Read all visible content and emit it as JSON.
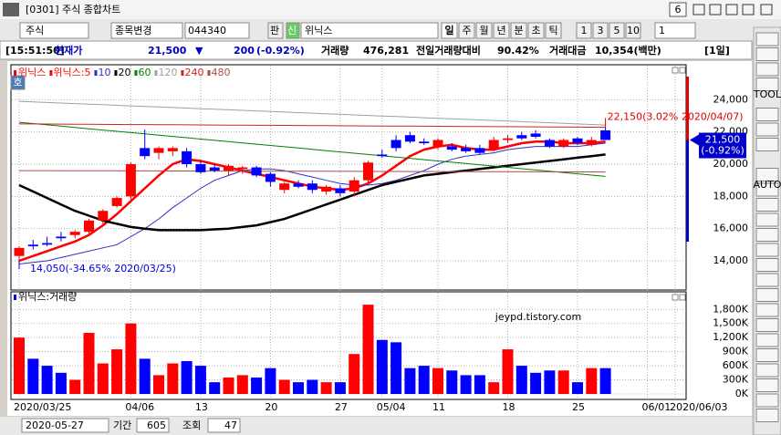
{
  "window": {
    "title": "[0301] 주식 종합차트",
    "page_badge": "6"
  },
  "toolbar": {
    "market": "주식",
    "change_button": "종목변경",
    "code": "044340",
    "pan": "판",
    "sin": "신",
    "name": "위닉스",
    "periods": [
      "일",
      "주",
      "월",
      "년",
      "분",
      "초",
      "틱"
    ],
    "intervals": [
      "1",
      "3",
      "5",
      "10"
    ],
    "interval_value": "1"
  },
  "info": {
    "time": "[15:51:50]",
    "price_label": "현재가",
    "price": "21,500",
    "arrow": "▼",
    "change": "200",
    "change_pct": "(-0.92%)",
    "volume_label": "거래량",
    "volume": "476,281",
    "ratio_label": "전일거래량대비",
    "ratio": "90.42%",
    "amount_label": "거래대금",
    "amount": "10,354(백만)",
    "period": "[1일]"
  },
  "side_tools": [
    "TOOL",
    "AUTO"
  ],
  "bottom": {
    "date": "2020-05-27",
    "period_label": "기간",
    "period_value": "605",
    "query_label": "조회",
    "query_value": "47"
  },
  "watermark": "jeypd.tistory.com",
  "chart_data": [
    {
      "type": "candlestick",
      "name": "위닉스",
      "legend_badge": "호",
      "categories": [
        "2020/03/25",
        null,
        null,
        null,
        null,
        null,
        null,
        null,
        "04/06",
        null,
        null,
        null,
        null,
        "13",
        null,
        null,
        null,
        null,
        "20",
        null,
        null,
        null,
        null,
        "27",
        null,
        null,
        "05/04",
        null,
        null,
        null,
        "11",
        null,
        null,
        null,
        null,
        "18",
        null,
        null,
        null,
        null,
        "25",
        null,
        null,
        null,
        null,
        "06/01",
        null,
        "2020/06/03"
      ],
      "open": [
        14300,
        15000,
        15100,
        15500,
        15600,
        15800,
        16500,
        17400,
        18000,
        21000,
        20700,
        20800,
        20800,
        20000,
        19800,
        19600,
        19700,
        19800,
        19400,
        18400,
        18800,
        18800,
        18300,
        18500,
        18300,
        19000,
        20600,
        21500,
        21800,
        21400,
        21100,
        21100,
        21000,
        21000,
        20900,
        21500,
        21800,
        21900,
        21500,
        21100,
        21600,
        21200,
        22100,
        null,
        null,
        null,
        null,
        null
      ],
      "high": [
        14900,
        15300,
        15500,
        15800,
        15900,
        16600,
        17200,
        18000,
        20100,
        22150,
        21100,
        21100,
        21000,
        20200,
        20000,
        20000,
        19900,
        19900,
        19500,
        18900,
        19000,
        19000,
        18700,
        18700,
        19200,
        20200,
        20900,
        21800,
        22000,
        21600,
        21600,
        21300,
        21200,
        21200,
        21700,
        21800,
        22000,
        22100,
        21600,
        21600,
        21700,
        21700,
        22300,
        null,
        null,
        null,
        null,
        null
      ],
      "low": [
        14050,
        14700,
        14900,
        15200,
        15400,
        15700,
        16300,
        17300,
        17800,
        20300,
        20300,
        20500,
        19800,
        19400,
        19500,
        19300,
        19400,
        19200,
        18600,
        18200,
        18500,
        18200,
        18100,
        18000,
        18000,
        18800,
        20400,
        20800,
        21300,
        21200,
        20900,
        20800,
        20700,
        20600,
        20800,
        21300,
        21500,
        21600,
        21000,
        21000,
        21200,
        21100,
        21500,
        null,
        null,
        null,
        null,
        null
      ],
      "close": [
        14800,
        14900,
        15000,
        15400,
        15800,
        16500,
        17100,
        17900,
        20000,
        20500,
        21000,
        21000,
        20000,
        19500,
        19600,
        19900,
        19800,
        19300,
        18900,
        18800,
        18600,
        18400,
        18600,
        18200,
        19000,
        20100,
        20500,
        21000,
        21400,
        21300,
        21500,
        20900,
        20800,
        20700,
        21500,
        21600,
        21600,
        21700,
        21100,
        21500,
        21300,
        21500,
        21500,
        null,
        null,
        null,
        null,
        null
      ],
      "up_color": "#ff0000",
      "down_color": "#0000ff",
      "series": [
        {
          "name": "위닉스:5",
          "color": "#ff0000",
          "values": [
            14000,
            14300,
            14600,
            14900,
            15200,
            15600,
            16200,
            16900,
            17700,
            18500,
            19300,
            20000,
            20300,
            20200,
            20000,
            19800,
            19600,
            19400,
            19200,
            19000,
            18800,
            18600,
            18500,
            18400,
            18500,
            18800,
            19300,
            19900,
            20500,
            20900,
            21100,
            21200,
            21000,
            20900,
            20900,
            21100,
            21300,
            21400,
            21400,
            21300,
            21300,
            21300,
            21400,
            null,
            null,
            null,
            null,
            null
          ]
        },
        {
          "name": "10",
          "color": "#3030c8",
          "values": [
            13800,
            13900,
            14000,
            14200,
            14400,
            14600,
            14800,
            15000,
            15500,
            16000,
            16600,
            17300,
            17900,
            18500,
            19000,
            19300,
            19600,
            19700,
            19700,
            19600,
            19400,
            19200,
            19000,
            18800,
            18700,
            18700,
            18800,
            19000,
            19300,
            19600,
            20000,
            20300,
            20500,
            20600,
            20700,
            20900,
            21000,
            21100,
            21100,
            21100,
            21100,
            21200,
            21300,
            null,
            null,
            null,
            null,
            null
          ]
        },
        {
          "name": "20",
          "color": "#000000",
          "values": [
            18700,
            18300,
            17900,
            17500,
            17100,
            16800,
            16500,
            16300,
            16100,
            16000,
            15900,
            15900,
            15900,
            15900,
            15950,
            16000,
            16100,
            16200,
            16400,
            16600,
            16900,
            17200,
            17500,
            17800,
            18100,
            18400,
            18700,
            18900,
            19100,
            19300,
            19400,
            19500,
            19600,
            19700,
            19800,
            19900,
            20000,
            20100,
            20200,
            20300,
            20400,
            20500,
            20600,
            null,
            null,
            null,
            null,
            null
          ]
        },
        {
          "name": "60",
          "color": "#008000",
          "values": [
            22600,
            22520,
            22440,
            22360,
            22280,
            22200,
            22120,
            22040,
            21960,
            21880,
            21800,
            21720,
            21640,
            21560,
            21480,
            21400,
            21320,
            21240,
            21160,
            21080,
            21000,
            20920,
            20840,
            20760,
            20680,
            20600,
            20520,
            20440,
            20360,
            20280,
            20200,
            20120,
            20040,
            19960,
            19880,
            19800,
            19720,
            19640,
            19560,
            19480,
            19400,
            19320,
            19240,
            null,
            null,
            null,
            null,
            null
          ]
        },
        {
          "name": "120",
          "color": "#a0a0a0",
          "values": [
            23900,
            23865,
            23830,
            23795,
            23760,
            23725,
            23690,
            23655,
            23620,
            23585,
            23550,
            23515,
            23480,
            23445,
            23410,
            23375,
            23340,
            23305,
            23270,
            23235,
            23200,
            23165,
            23130,
            23095,
            23060,
            23025,
            22990,
            22955,
            22920,
            22885,
            22850,
            22815,
            22780,
            22745,
            22710,
            22675,
            22640,
            22605,
            22570,
            22535,
            22500,
            22465,
            22430,
            null,
            null,
            null,
            null,
            null
          ]
        },
        {
          "name": "240",
          "color": "#d02020",
          "values": [
            22500,
            22495,
            22490,
            22485,
            22480,
            22475,
            22470,
            22465,
            22460,
            22455,
            22450,
            22445,
            22440,
            22435,
            22430,
            22425,
            22420,
            22415,
            22410,
            22405,
            22400,
            22395,
            22390,
            22385,
            22380,
            22375,
            22370,
            22365,
            22360,
            22355,
            22350,
            22345,
            22340,
            22335,
            22330,
            22325,
            22320,
            22315,
            22310,
            22305,
            22300,
            22295,
            22290,
            null,
            null,
            null,
            null,
            null
          ]
        },
        {
          "name": "480",
          "color": "#b04848",
          "values": [
            19600,
            19598,
            19596,
            19594,
            19592,
            19590,
            19588,
            19586,
            19584,
            19582,
            19580,
            19578,
            19576,
            19574,
            19572,
            19570,
            19568,
            19566,
            19564,
            19562,
            19560,
            19558,
            19556,
            19554,
            19552,
            19550,
            19548,
            19546,
            19544,
            19542,
            19540,
            19538,
            19536,
            19534,
            19532,
            19530,
            19528,
            19526,
            19524,
            19522,
            19520,
            19518,
            19516,
            null,
            null,
            null,
            null,
            null
          ]
        }
      ],
      "ylim": [
        12300,
        24700
      ],
      "yticks": [
        {
          "value": 14000,
          "label": "14,000"
        },
        {
          "value": 16000,
          "label": "16,000"
        },
        {
          "value": 18000,
          "label": "18,000"
        },
        {
          "value": 20000,
          "label": "20,000"
        },
        {
          "value": 22000,
          "label": "22,000"
        },
        {
          "value": 24000,
          "label": "24,000"
        }
      ],
      "grid": true,
      "max_annotation": "22,150(3.02% 2020/04/07)",
      "min_annotation": "14,050(-34.65% 2020/03/25)"
    },
    {
      "type": "bar",
      "name": "위닉스:거래량",
      "values": [
        1200,
        750,
        600,
        450,
        300,
        1300,
        650,
        950,
        1500,
        750,
        400,
        650,
        700,
        600,
        250,
        350,
        400,
        350,
        550,
        300,
        250,
        300,
        250,
        250,
        850,
        1900,
        1150,
        1100,
        550,
        600,
        550,
        500,
        400,
        400,
        250,
        950,
        600,
        450,
        500,
        500,
        250,
        550,
        550,
        null,
        null,
        null,
        null,
        null
      ],
      "ylim": [
        0,
        1980
      ],
      "yticks": [
        {
          "value": 0,
          "label": "0K"
        },
        {
          "value": 300,
          "label": "300K"
        },
        {
          "value": 600,
          "label": "600K"
        },
        {
          "value": 900,
          "label": "900K"
        },
        {
          "value": 1200,
          "label": "1,200K"
        },
        {
          "value": 1500,
          "label": "1,500K"
        },
        {
          "value": 1800,
          "label": "1,800K"
        }
      ],
      "grid": true
    }
  ]
}
